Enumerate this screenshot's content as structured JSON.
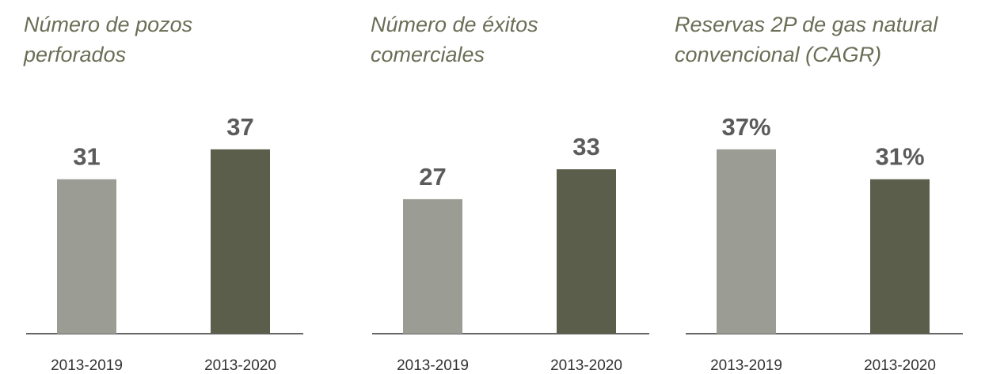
{
  "chart_data": [
    {
      "type": "bar",
      "title": [
        "Número de pozos",
        "perforados"
      ],
      "categories": [
        "2013-2019",
        "2013-2020"
      ],
      "values": [
        31,
        37
      ],
      "colors": [
        "#9b9c94",
        "#5a5e4a"
      ]
    },
    {
      "type": "bar",
      "title": [
        "Número de éxitos",
        "comerciales"
      ],
      "categories": [
        "2013-2019",
        "2013-2020"
      ],
      "values": [
        27,
        33
      ],
      "colors": [
        "#9b9c94",
        "#5a5e4a"
      ]
    },
    {
      "type": "bar",
      "title": [
        "Reservas 2P de gas natural",
        "convencional (CAGR)"
      ],
      "categories": [
        "2013-2019",
        "2013-2020"
      ],
      "values": [
        37,
        31
      ],
      "value_labels": [
        "37%",
        "31%"
      ],
      "colors": [
        "#9b9c94",
        "#5a5e4a"
      ]
    }
  ]
}
